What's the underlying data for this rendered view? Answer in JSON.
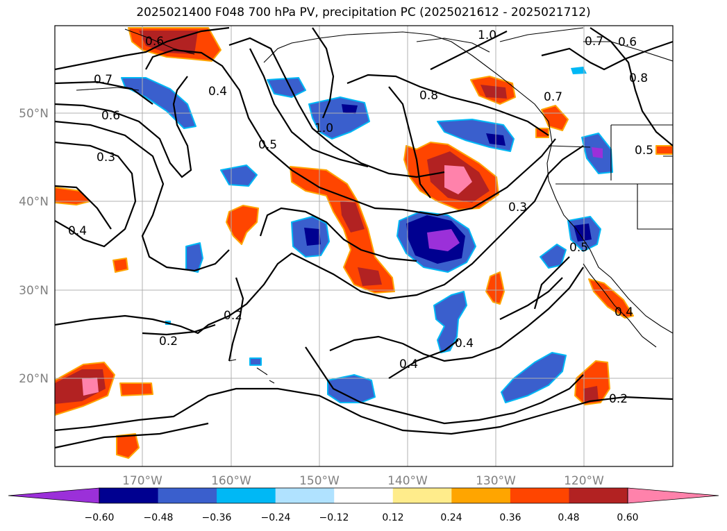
{
  "title": "2025021400 F048 700 hPa PV, precipitation PC (2025021612 - 2025021712)",
  "map": {
    "lon_labels": [
      "170°W",
      "160°W",
      "150°W",
      "140°W",
      "130°W",
      "120°W"
    ],
    "lat_labels": [
      "50°N",
      "40°N",
      "30°N",
      "20°N"
    ],
    "contour_labels": [
      {
        "text": "0.6",
        "id": "c1"
      },
      {
        "text": "1.0",
        "id": "c2"
      },
      {
        "text": "0.7",
        "id": "c3"
      },
      {
        "text": "0.6",
        "id": "c4"
      },
      {
        "text": "0.8",
        "id": "c5"
      },
      {
        "text": "0.7",
        "id": "c6"
      },
      {
        "text": "0.4",
        "id": "c7"
      },
      {
        "text": "0.8",
        "id": "c8"
      },
      {
        "text": "0.7",
        "id": "c9"
      },
      {
        "text": "0.6",
        "id": "c10"
      },
      {
        "text": "1.0",
        "id": "c11"
      },
      {
        "text": "0.5",
        "id": "c12"
      },
      {
        "text": "0.5",
        "id": "c13"
      },
      {
        "text": "0.3",
        "id": "c14"
      },
      {
        "text": "0.3",
        "id": "c15"
      },
      {
        "text": "0.4",
        "id": "c16"
      },
      {
        "text": "0.5",
        "id": "c17"
      },
      {
        "text": "0.2",
        "id": "c18"
      },
      {
        "text": "0.2",
        "id": "c19"
      },
      {
        "text": "0.4",
        "id": "c20"
      },
      {
        "text": "0.4",
        "id": "c21"
      },
      {
        "text": "0.4",
        "id": "c22"
      },
      {
        "text": "0.2",
        "id": "c23"
      }
    ]
  },
  "colorbar": {
    "colors": [
      "#9b30d9",
      "#000090",
      "#3a5fcd",
      "#00b8f5",
      "#b0e2ff",
      "#ffffff",
      "#ffec8b",
      "#ffa500",
      "#ff4500",
      "#b22222",
      "#ff82ab"
    ],
    "tick_labels": [
      "−0.60",
      "−0.48",
      "−0.36",
      "−0.24",
      "−0.12",
      "0.12",
      "0.24",
      "0.36",
      "0.48",
      "0.60"
    ]
  }
}
